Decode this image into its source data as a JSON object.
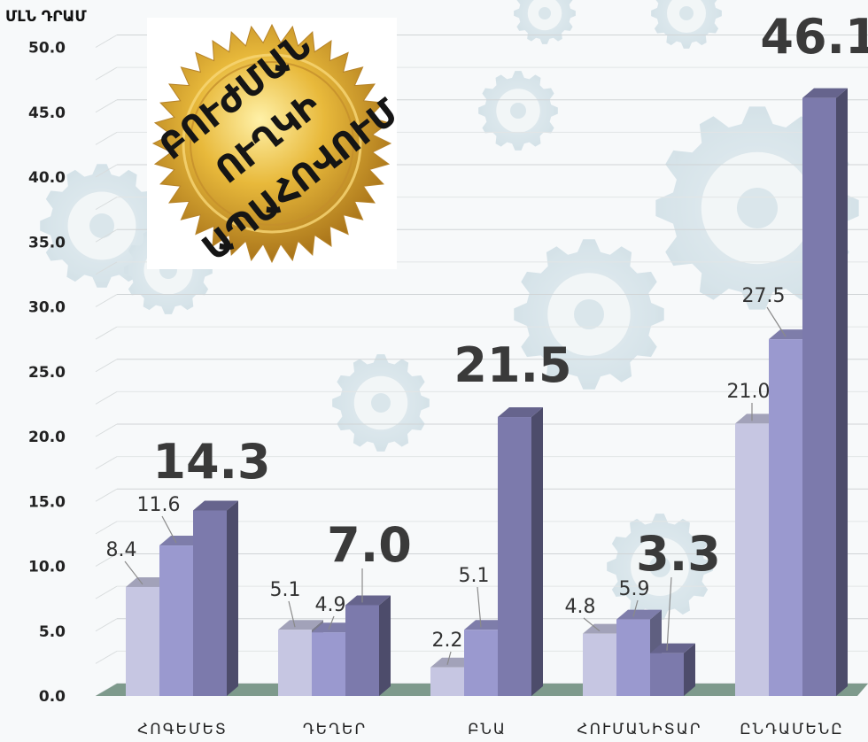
{
  "chart_data": {
    "type": "bar",
    "ylabel": "ՄԼՆ ԴՐԱՄ",
    "ylim": [
      0,
      50
    ],
    "yticks": [
      "0.0",
      "5.0",
      "10.0",
      "15.0",
      "20.0",
      "25.0",
      "30.0",
      "35.0",
      "40.0",
      "45.0",
      "50.0"
    ],
    "categories": [
      "ՀՈԳԵՄԵՏ",
      "ԴԵՂԵՐ",
      "ԲՆԱ",
      "ՀՈՒՄԱՆԻՏԱՐ",
      "ԸՆԴԱՄԵՆԸ"
    ],
    "series": [
      {
        "values": [
          8.4,
          5.1,
          2.2,
          4.8,
          21.0
        ],
        "color": "#c6c6e2"
      },
      {
        "values": [
          11.6,
          4.9,
          5.1,
          5.9,
          27.5
        ],
        "color": "#9a99cf"
      },
      {
        "values": [
          14.3,
          7.0,
          21.5,
          3.3,
          46.1
        ],
        "color": "#7c7aac"
      }
    ],
    "data_labels": [
      [
        "8.4",
        "11.6",
        "14.3"
      ],
      [
        "5.1",
        "4.9",
        "7.0"
      ],
      [
        "2.2",
        "5.1",
        "21.5"
      ],
      [
        "4.8",
        "5.9",
        "3.3"
      ],
      [
        "21.0",
        "27.5",
        "46.1"
      ]
    ],
    "grid": true,
    "floor_color": "#7e9a8c"
  },
  "seal": {
    "lines": [
      "ԲՈՒԺՄԱՆ",
      "ՈՒՂԿԻ",
      "ԱՊԱՀՈՎՈՒՄ"
    ],
    "color": "#e3b23c"
  }
}
